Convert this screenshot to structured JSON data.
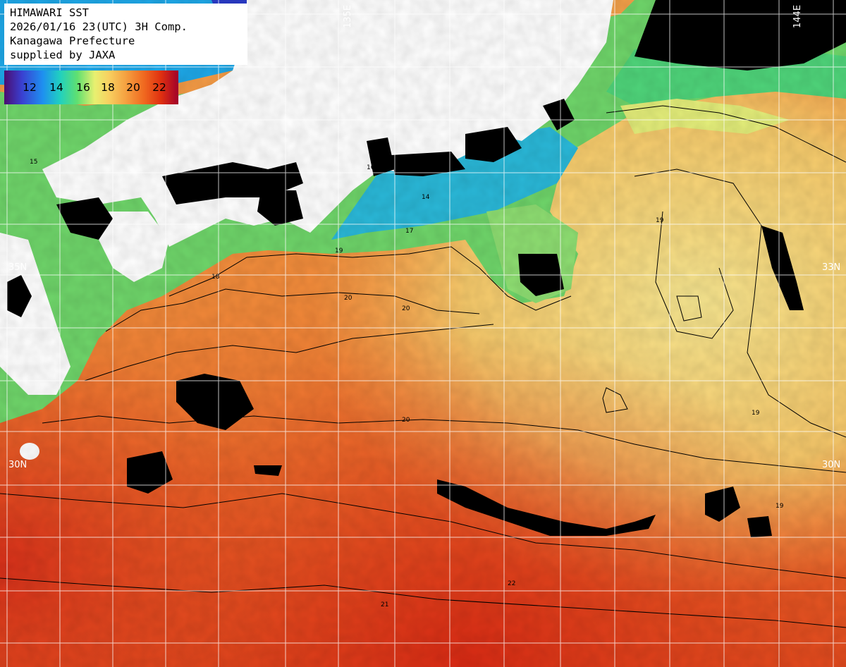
{
  "header": {
    "lines": [
      "HIMAWARI SST",
      "2026/01/16 23(UTC) 3H Comp.",
      "Kanagawa Prefecture",
      "supplied by JAXA"
    ]
  },
  "scale": {
    "labels": [
      "12",
      "14",
      "16",
      "18",
      "20",
      "22"
    ]
  },
  "grid_labels": {
    "lon": [
      "135E",
      "144E"
    ],
    "lat": [
      "35N",
      "33N",
      "30N",
      "30N"
    ]
  },
  "contour_labels": [
    "15",
    "14",
    "16",
    "17",
    "18",
    "19",
    "20",
    "21",
    "22"
  ],
  "colors": {
    "land": "#ffffff",
    "nodata": "#000000",
    "grid": "#ffffff"
  }
}
